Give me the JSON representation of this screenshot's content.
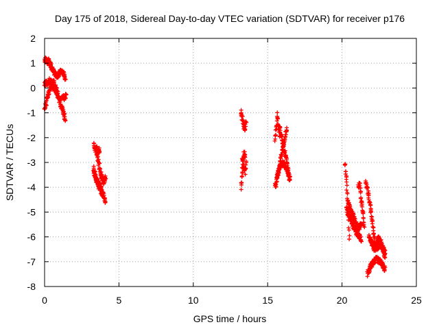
{
  "chart_data": {
    "type": "scatter",
    "title": "Day 175 of 2018, Sidereal Day-to-day VTEC variation (SDTVAR) for receiver p176",
    "xlabel": "GPS time / hours",
    "ylabel": "SDTVAR / TECUs",
    "xlim": [
      0,
      25
    ],
    "ylim": [
      -8,
      2
    ],
    "xticks": [
      "0",
      "5",
      "10",
      "15",
      "20",
      "25"
    ],
    "yticks": [
      "2",
      "1",
      "0",
      "-1",
      "-2",
      "-3",
      "-4",
      "-5",
      "-6",
      "-7",
      "-8"
    ],
    "grid": true,
    "marker": "+",
    "marker_color": "#ff0000",
    "series": [
      {
        "name": "SDTVAR",
        "segments": [
          {
            "x_start": 0.0,
            "x_end": 0.4,
            "y": [
              1.1,
              1.15,
              1.05,
              1.1,
              0.95
            ]
          },
          {
            "x_start": 0.3,
            "x_end": 0.8,
            "y": [
              1.05,
              0.9,
              0.75,
              0.6,
              0.5
            ]
          },
          {
            "x_start": 0.8,
            "x_end": 1.4,
            "y": [
              0.45,
              0.55,
              0.7,
              0.6,
              0.35
            ]
          },
          {
            "x_start": 0.0,
            "x_end": 0.5,
            "y": [
              0.15,
              0.2,
              0.25,
              0.3,
              0.2
            ]
          },
          {
            "x_start": 0.5,
            "x_end": 1.4,
            "y": [
              0.1,
              -0.1,
              -0.4,
              -0.8,
              -1.3
            ]
          },
          {
            "x_start": 0.0,
            "x_end": 0.6,
            "y": [
              -0.85,
              -0.5,
              -0.2,
              0.1,
              0.3
            ]
          },
          {
            "x_start": 0.6,
            "x_end": 0.9,
            "y": [
              0.25,
              0.1,
              0.0,
              -0.1,
              -0.2
            ]
          },
          {
            "x_start": 1.2,
            "x_end": 1.45,
            "y": [
              -0.3,
              -0.35,
              -0.4,
              -0.35,
              -0.3
            ]
          },
          {
            "x_start": 3.3,
            "x_end": 3.7,
            "y": [
              -2.3,
              -2.5,
              -2.4,
              -2.6,
              -2.5
            ]
          },
          {
            "x_start": 3.3,
            "x_end": 4.1,
            "y": [
              -3.4,
              -3.7,
              -3.9,
              -4.2,
              -4.6
            ]
          },
          {
            "x_start": 3.5,
            "x_end": 4.1,
            "y": [
              -2.6,
              -3.1,
              -3.5,
              -3.8,
              -3.6
            ]
          },
          {
            "x_start": 3.3,
            "x_end": 3.9,
            "y": [
              -3.2,
              -3.6,
              -3.9,
              -4.1,
              -4.3
            ]
          },
          {
            "x_start": 13.2,
            "x_end": 13.5,
            "y": [
              -4.1,
              -3.5,
              -2.9,
              -2.6,
              -2.8
            ]
          },
          {
            "x_start": 13.2,
            "x_end": 13.55,
            "y": [
              -1.0,
              -1.2,
              -1.5,
              -1.7,
              -1.3
            ]
          },
          {
            "x_start": 13.3,
            "x_end": 13.55,
            "y": [
              -2.8,
              -3.0,
              -3.2,
              -3.4,
              -2.9
            ]
          },
          {
            "x_start": 15.5,
            "x_end": 16.3,
            "y": [
              -4.0,
              -3.5,
              -2.8,
              -2.2,
              -1.6
            ]
          },
          {
            "x_start": 15.5,
            "x_end": 15.8,
            "y": [
              -2.2,
              -1.6,
              -1.1,
              -1.5,
              -2.0
            ]
          },
          {
            "x_start": 15.8,
            "x_end": 16.5,
            "y": [
              -1.6,
              -2.1,
              -2.6,
              -3.1,
              -3.8
            ]
          },
          {
            "x_start": 15.6,
            "x_end": 16.5,
            "y": [
              -3.6,
              -3.2,
              -3.0,
              -3.3,
              -3.6
            ]
          },
          {
            "x_start": 20.2,
            "x_end": 20.5,
            "y": [
              -3.0,
              -3.6,
              -4.3,
              -5.0,
              -6.0
            ]
          },
          {
            "x_start": 20.3,
            "x_end": 21.3,
            "y": [
              -4.9,
              -5.3,
              -5.6,
              -5.9,
              -6.1
            ]
          },
          {
            "x_start": 20.4,
            "x_end": 21.3,
            "y": [
              -4.6,
              -5.0,
              -5.3,
              -5.7,
              -5.5
            ]
          },
          {
            "x_start": 21.1,
            "x_end": 21.5,
            "y": [
              -4.0,
              -3.9,
              -4.5,
              -5.0,
              -5.6
            ]
          },
          {
            "x_start": 21.6,
            "x_end": 22.2,
            "y": [
              -3.8,
              -4.2,
              -4.7,
              -5.5,
              -6.2
            ]
          },
          {
            "x_start": 21.7,
            "x_end": 22.9,
            "y": [
              -7.5,
              -7.1,
              -6.9,
              -7.0,
              -7.3
            ]
          },
          {
            "x_start": 21.8,
            "x_end": 22.9,
            "y": [
              -6.0,
              -6.3,
              -6.5,
              -6.2,
              -6.8
            ]
          },
          {
            "x_start": 22.0,
            "x_end": 22.9,
            "y": [
              -6.3,
              -6.5,
              -6.0,
              -6.4,
              -6.6
            ]
          }
        ]
      }
    ]
  }
}
